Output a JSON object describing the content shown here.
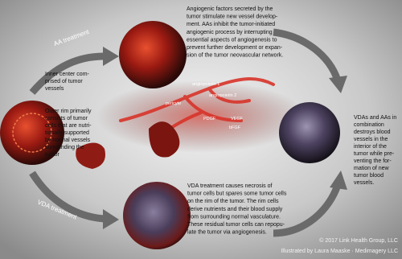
{
  "treatments": {
    "aa": "AA treatment",
    "vda": "VDA treatment"
  },
  "texts": {
    "inner_center": [
      "Inner center com-",
      "prised of tumor",
      "vessels"
    ],
    "outer_rim": [
      "Outer rim primarily",
      "consists of tumor",
      "cells that are nutri-",
      "tionally supported",
      "by normal vessels",
      "surrounding the",
      "tumor"
    ],
    "angiogenic": [
      "Angiogenic factors secreted by the",
      "tumor stimulate new vessel develop-",
      "ment. AAs inhibit the tumor-initiated",
      "angiogenic process by interrupting",
      "essential aspects of angiogenesis to",
      "prevent further development or expan-",
      "sion of the tumor neovascular network."
    ],
    "combination": [
      "VDAs and AAs in",
      "combination",
      "destroys blood",
      "vessels in the",
      "interior of the",
      "tumor while pre-",
      "venting the for-",
      "mation of new",
      "tumor blood",
      "vessels."
    ],
    "vda_effect": [
      "VDA treatment  causes necrosis of",
      "tumor cells but spares some tumor cells",
      "on the rim of the tumor. The rim cells",
      "derive nutrients and their blood supply",
      "from surrounding normal vasculature.",
      "These residual tumor cells can repopu-",
      "late the tumor via angiogenesis."
    ]
  },
  "labels": [
    "angiopoietin 1",
    "angiopoietin 2",
    "pericyte",
    "PDGF",
    "VEGF",
    "bFGF"
  ],
  "credits": [
    "© 2017 Link Health Group, LLC",
    "Illustrated by Laura Maaske · Medimagery LLC"
  ]
}
